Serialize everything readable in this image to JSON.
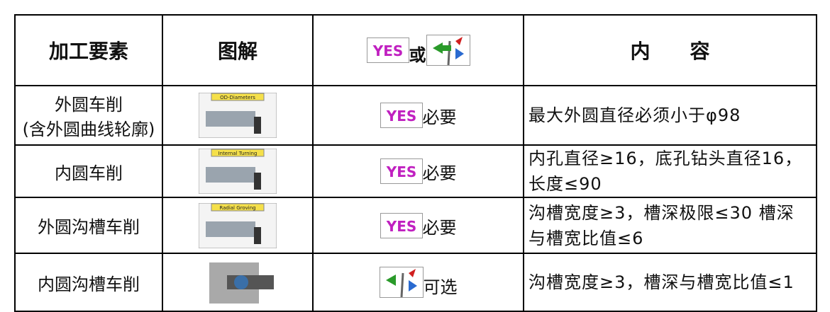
{
  "table": {
    "header": {
      "element": "加工要素",
      "figure": "图解",
      "choice": {
        "yes": "YES",
        "or": "或"
      },
      "content": "内　　容"
    },
    "rows": [
      {
        "name": [
          "外圆车削",
          "(含外圆曲线轮廓)"
        ],
        "figure": "OD-Diameters",
        "choice": {
          "icon": "YES",
          "label": "必要"
        },
        "content": "最大外圆直径必须小于φ98"
      },
      {
        "name": [
          "内圆车削"
        ],
        "figure": "Internal Turning",
        "choice": {
          "icon": "YES",
          "label": "必要"
        },
        "content": "内孔直径≥16，底孔钻头直径16，长度≤90"
      },
      {
        "name": [
          "外圆沟槽车削"
        ],
        "figure": "Radial Groving",
        "choice": {
          "icon": "YES",
          "label": "必要"
        },
        "content": "沟槽宽度≥3，槽深极限≤30 槽深与槽宽比值≤6"
      },
      {
        "name": [
          "内圆沟槽车削"
        ],
        "figure": null,
        "choice": {
          "icon": null,
          "label": "可选"
        },
        "content": "沟槽宽度≥3，槽深与槽宽比值≤1"
      }
    ]
  }
}
